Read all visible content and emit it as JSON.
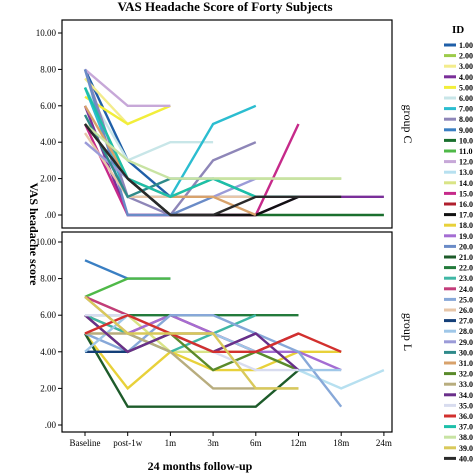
{
  "chart_data": {
    "type": "line",
    "title": "VAS Headache Score of Forty Subjects",
    "xlabel": "24 months follow-up",
    "ylabel": "VAS headache score",
    "categories": [
      "Baseline",
      "post-1w",
      "1m",
      "3m",
      "6m",
      "12m",
      "18m",
      "24m"
    ],
    "yticks": [
      "10.00",
      "8.00",
      "6.00",
      "4.00",
      "2.00",
      ".00"
    ],
    "ylim": [
      0,
      10.5
    ],
    "legend_title": "ID",
    "legend_placement": "right",
    "panels": [
      {
        "name": "group C",
        "series": [
          {
            "id": "1.00",
            "color": "#1f5fa8",
            "values": [
              8,
              3,
              1,
              1,
              1,
              1
            ]
          },
          {
            "id": "2.00",
            "color": "#9ccb4a",
            "values": [
              7,
              2,
              1,
              2,
              2,
              2,
              2
            ]
          },
          {
            "id": "3.00",
            "color": "#f3ec8c",
            "values": [
              7.5,
              5,
              6
            ]
          },
          {
            "id": "4.00",
            "color": "#7a2f99",
            "values": [
              6,
              0,
              0,
              0,
              0,
              1,
              1,
              1
            ]
          },
          {
            "id": "5.00",
            "color": "#f2ee3a",
            "values": [
              6.5,
              5,
              6
            ]
          },
          {
            "id": "6.00",
            "color": "#c8e6e8",
            "values": [
              7,
              3,
              4,
              4
            ]
          },
          {
            "id": "7.00",
            "color": "#2bbdd0",
            "values": [
              7,
              1,
              1,
              5,
              6
            ]
          },
          {
            "id": "8.00",
            "color": "#8e86b8",
            "values": [
              8,
              1,
              0,
              3,
              4
            ]
          },
          {
            "id": "10.00",
            "color": "#1a6f2e",
            "values": [
              5,
              2,
              0,
              0,
              0,
              0,
              0,
              0
            ]
          },
          {
            "id": "12.00",
            "color": "#c7a8d8",
            "values": [
              8,
              6,
              6
            ]
          },
          {
            "id": "15.00",
            "color": "#c62a8a",
            "values": [
              5,
              0,
              0,
              0,
              0,
              5
            ]
          },
          {
            "id": "17.00",
            "color": "#111111",
            "values": [
              5,
              2,
              0,
              0,
              0,
              1
            ]
          },
          {
            "id": "20.00",
            "color": "#6a8bc7",
            "values": [
              8,
              0,
              0,
              1,
              1
            ]
          },
          {
            "id": "26.00",
            "color": "#e7c6a8",
            "values": [
              4.5,
              1,
              1,
              1,
              1
            ]
          },
          {
            "id": "29.00",
            "color": "#9b9bd8",
            "values": [
              4,
              2,
              1,
              1,
              2
            ]
          },
          {
            "id": "30.00",
            "color": "#2f8a8a",
            "values": [
              5.5,
              1,
              2,
              2,
              1
            ]
          },
          {
            "id": "31.00",
            "color": "#d8a26b",
            "values": [
              6,
              2,
              1,
              1,
              0
            ]
          },
          {
            "id": "37.00",
            "color": "#1dbfa9",
            "values": [
              7,
              2,
              1,
              2,
              1,
              1
            ]
          },
          {
            "id": "38.00",
            "color": "#c8e3a3",
            "values": [
              5,
              3,
              2,
              2,
              2,
              2,
              2
            ]
          },
          {
            "id": "40.00",
            "color": "#2a2a2a",
            "values": [
              5,
              2,
              0,
              0,
              1,
              1,
              1
            ]
          }
        ]
      },
      {
        "name": "group L",
        "series": [
          {
            "id": "9.00",
            "color": "#3a7fc3",
            "values": [
              9,
              8,
              8
            ]
          },
          {
            "id": "11.00",
            "color": "#4fb948",
            "values": [
              7,
              8,
              8
            ]
          },
          {
            "id": "13.00",
            "color": "#b7e0f0",
            "values": [
              7,
              6,
              6,
              6,
              5,
              3,
              2,
              3
            ]
          },
          {
            "id": "14.00",
            "color": "#d9e486",
            "values": [
              7,
              6,
              4,
              4,
              4,
              3
            ]
          },
          {
            "id": "16.00",
            "color": "#b01f2e",
            "values": [
              6,
              5,
              6,
              5,
              4,
              5
            ]
          },
          {
            "id": "18.00",
            "color": "#e8d13a",
            "values": [
              5,
              2,
              4,
              3,
              3,
              4,
              4
            ]
          },
          {
            "id": "19.00",
            "color": "#a46dd3",
            "values": [
              7,
              5,
              6,
              5,
              4,
              4,
              3
            ]
          },
          {
            "id": "21.00",
            "color": "#1d5b2a",
            "values": [
              5,
              1,
              1,
              1,
              1,
              3
            ]
          },
          {
            "id": "22.00",
            "color": "#237a3b",
            "values": [
              6,
              6,
              6,
              6,
              6,
              6
            ]
          },
          {
            "id": "23.00",
            "color": "#3fb7a5",
            "values": [
              6,
              5,
              4,
              5,
              6
            ]
          },
          {
            "id": "24.00",
            "color": "#c33c7a",
            "values": [
              7,
              6,
              5,
              5,
              4,
              5
            ]
          },
          {
            "id": "25.00",
            "color": "#87a8d8",
            "values": [
              5,
              4,
              6,
              6,
              5,
              4,
              1
            ]
          },
          {
            "id": "27.00",
            "color": "#143f78",
            "values": [
              4,
              4,
              5,
              4,
              5
            ]
          },
          {
            "id": "28.00",
            "color": "#9fc7e8",
            "values": [
              4,
              6,
              5,
              5,
              4,
              3,
              3
            ]
          },
          {
            "id": "32.00",
            "color": "#5a8a2a",
            "values": [
              6,
              4,
              5,
              3,
              4,
              3
            ]
          },
          {
            "id": "33.00",
            "color": "#b8ad7e",
            "values": [
              5,
              5,
              4,
              2,
              2,
              2
            ]
          },
          {
            "id": "34.00",
            "color": "#6a2f8a",
            "values": [
              6,
              4,
              5,
              4,
              5,
              3
            ]
          },
          {
            "id": "35.00",
            "color": "#d8dcef",
            "values": [
              6,
              6,
              5,
              4,
              3,
              3
            ]
          },
          {
            "id": "36.00",
            "color": "#d2302e",
            "values": [
              5,
              6,
              5,
              4,
              4,
              5,
              4
            ]
          },
          {
            "id": "39.00",
            "color": "#d9c95a",
            "values": [
              7,
              5,
              5,
              5,
              2,
              2
            ]
          }
        ]
      }
    ],
    "legend": [
      {
        "label": "1.00",
        "color": "#1f5fa8"
      },
      {
        "label": "2.00",
        "color": "#9ccb4a"
      },
      {
        "label": "3.00",
        "color": "#f3ec8c"
      },
      {
        "label": "4.00",
        "color": "#7a2f99"
      },
      {
        "label": "5.00",
        "color": "#f2ee3a"
      },
      {
        "label": "6.00",
        "color": "#c8e6e8"
      },
      {
        "label": "7.00",
        "color": "#2bbdd0"
      },
      {
        "label": "8.00",
        "color": "#8e86b8"
      },
      {
        "label": "9.00",
        "color": "#3a7fc3"
      },
      {
        "label": "10.0",
        "color": "#1a6f2e"
      },
      {
        "label": "11.0",
        "color": "#4fb948"
      },
      {
        "label": "12.0",
        "color": "#c7a8d8"
      },
      {
        "label": "13.0",
        "color": "#b7e0f0"
      },
      {
        "label": "14.0",
        "color": "#d9e486"
      },
      {
        "label": "15.0",
        "color": "#c62a8a"
      },
      {
        "label": "16.0",
        "color": "#b01f2e"
      },
      {
        "label": "17.0",
        "color": "#111111"
      },
      {
        "label": "18.0",
        "color": "#e8d13a"
      },
      {
        "label": "19.0",
        "color": "#a46dd3"
      },
      {
        "label": "20.0",
        "color": "#6a8bc7"
      },
      {
        "label": "21.0",
        "color": "#1d5b2a"
      },
      {
        "label": "22.0",
        "color": "#237a3b"
      },
      {
        "label": "23.0",
        "color": "#3fb7a5"
      },
      {
        "label": "24.0",
        "color": "#c33c7a"
      },
      {
        "label": "25.0",
        "color": "#87a8d8"
      },
      {
        "label": "26.0",
        "color": "#e7c6a8"
      },
      {
        "label": "27.0",
        "color": "#143f78"
      },
      {
        "label": "28.0",
        "color": "#9fc7e8"
      },
      {
        "label": "29.0",
        "color": "#9b9bd8"
      },
      {
        "label": "30.0",
        "color": "#2f8a8a"
      },
      {
        "label": "31.0",
        "color": "#d8a26b"
      },
      {
        "label": "32.0",
        "color": "#5a8a2a"
      },
      {
        "label": "33.0",
        "color": "#b8ad7e"
      },
      {
        "label": "34.0",
        "color": "#6a2f8a"
      },
      {
        "label": "35.0",
        "color": "#d8dcef"
      },
      {
        "label": "36.0",
        "color": "#d2302e"
      },
      {
        "label": "37.0",
        "color": "#1dbfa9"
      },
      {
        "label": "38.0",
        "color": "#c8e3a3"
      },
      {
        "label": "39.0",
        "color": "#d9c95a"
      },
      {
        "label": "40.0",
        "color": "#2a2a2a"
      }
    ]
  }
}
